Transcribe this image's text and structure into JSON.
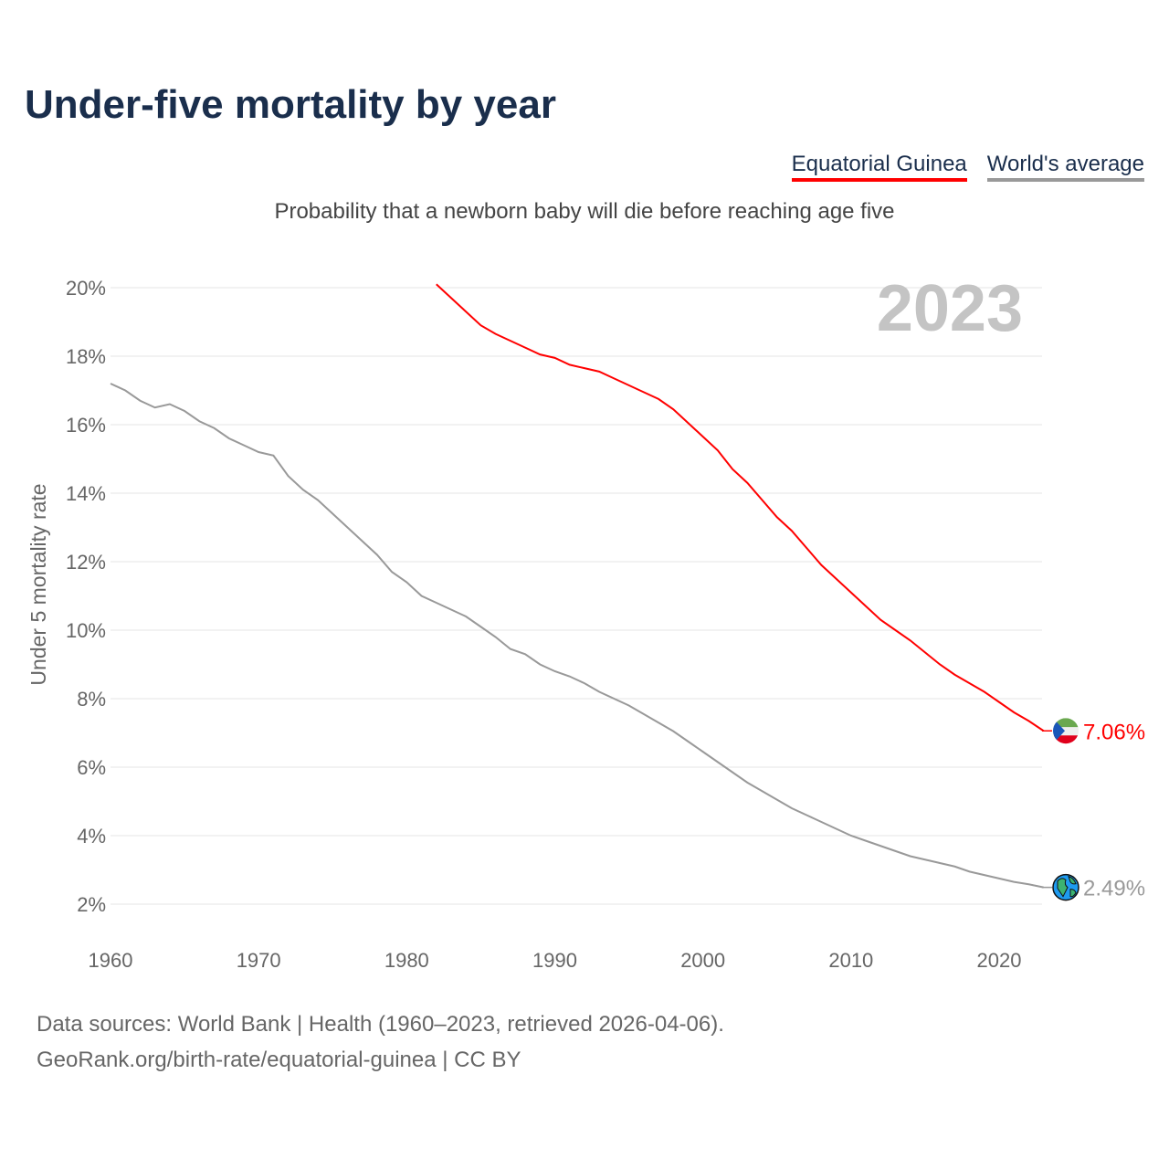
{
  "chart_data": {
    "type": "line",
    "title": "Under-five mortality by year",
    "subtitle": "Probability that a newborn baby will die before reaching age five",
    "ylabel": "Under 5 mortality rate",
    "xlabel": "",
    "ylim": [
      2,
      20
    ],
    "xlim": [
      1960,
      2023
    ],
    "yticks": [
      "2%",
      "4%",
      "6%",
      "8%",
      "10%",
      "12%",
      "14%",
      "16%",
      "18%",
      "20%"
    ],
    "xticks": [
      "1960",
      "1970",
      "1980",
      "1990",
      "2000",
      "2010",
      "2020"
    ],
    "watermark_year": "2023",
    "grid": true,
    "legend_position": "top-right",
    "series": [
      {
        "name": "Equatorial Guinea",
        "color": "#ff0000",
        "end_label": "7.06%",
        "x_start": 1982,
        "values": [
          20.1,
          19.7,
          19.3,
          18.9,
          18.65,
          18.45,
          18.25,
          18.05,
          17.95,
          17.75,
          17.65,
          17.55,
          17.35,
          17.15,
          16.95,
          16.75,
          16.45,
          16.05,
          15.65,
          15.25,
          14.7,
          14.3,
          13.8,
          13.3,
          12.9,
          12.4,
          11.9,
          11.5,
          11.1,
          10.7,
          10.3,
          10.0,
          9.7,
          9.35,
          9.0,
          8.7,
          8.45,
          8.2,
          7.9,
          7.6,
          7.35,
          7.06
        ]
      },
      {
        "name": "World's average",
        "color": "#999999",
        "end_label": "2.49%",
        "x_start": 1960,
        "values": [
          17.2,
          17.0,
          16.7,
          16.5,
          16.6,
          16.4,
          16.1,
          15.9,
          15.6,
          15.4,
          15.2,
          15.1,
          14.5,
          14.1,
          13.8,
          13.4,
          13.0,
          12.6,
          12.2,
          11.7,
          11.4,
          11.0,
          10.8,
          10.6,
          10.4,
          10.1,
          9.8,
          9.45,
          9.3,
          9.0,
          8.8,
          8.65,
          8.45,
          8.2,
          8.0,
          7.8,
          7.55,
          7.3,
          7.05,
          6.75,
          6.45,
          6.15,
          5.85,
          5.55,
          5.3,
          5.05,
          4.8,
          4.6,
          4.4,
          4.2,
          4.0,
          3.85,
          3.7,
          3.55,
          3.4,
          3.3,
          3.2,
          3.1,
          2.95,
          2.85,
          2.75,
          2.65,
          2.58,
          2.49
        ]
      }
    ]
  },
  "footer": {
    "line1": "Data sources: World Bank | Health (1960–2023, retrieved 2026-04-06).",
    "line2": "GeoRank.org/birth-rate/equatorial-guinea | CC BY"
  }
}
